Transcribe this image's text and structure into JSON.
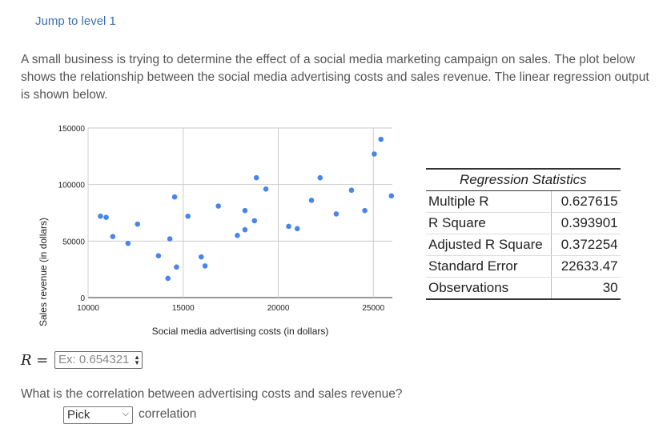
{
  "header": {
    "jump_link": "Jump to level 1"
  },
  "problem_text": "A small business is trying to determine the effect of a social media marketing campaign on sales. The plot below shows the relationship between the social media advertising costs and sales revenue. The linear regression output is shown below.",
  "chart_data": {
    "type": "scatter",
    "xlabel": "Social media advertising costs (in dollars)",
    "ylabel": "Sales revenue (in dollars)",
    "xlim": [
      10000,
      26000
    ],
    "ylim": [
      0,
      150000
    ],
    "x_ticks": [
      10000,
      15000,
      20000,
      25000
    ],
    "y_ticks": [
      0,
      50000,
      100000,
      150000
    ],
    "x_tick_labels": [
      "10000",
      "15000",
      "20000",
      "25000"
    ],
    "y_tick_labels": [
      "0",
      "50000",
      "100000",
      "150000"
    ],
    "grid": true,
    "point_color": "#4a86e8",
    "points": [
      [
        10650,
        72000
      ],
      [
        10950,
        71000
      ],
      [
        11300,
        54000
      ],
      [
        12100,
        48000
      ],
      [
        12600,
        65000
      ],
      [
        13700,
        37000
      ],
      [
        14200,
        17000
      ],
      [
        14300,
        52000
      ],
      [
        14550,
        89000
      ],
      [
        14650,
        27000
      ],
      [
        15250,
        72000
      ],
      [
        15950,
        36000
      ],
      [
        16150,
        28000
      ],
      [
        16850,
        81000
      ],
      [
        17850,
        55000
      ],
      [
        18250,
        77000
      ],
      [
        18250,
        60000
      ],
      [
        18750,
        68000
      ],
      [
        18850,
        106000
      ],
      [
        19350,
        96000
      ],
      [
        20550,
        63000
      ],
      [
        21000,
        61000
      ],
      [
        21750,
        86000
      ],
      [
        22200,
        106000
      ],
      [
        23050,
        74000
      ],
      [
        23850,
        95000
      ],
      [
        24550,
        77000
      ],
      [
        25050,
        127000
      ],
      [
        25400,
        140000
      ],
      [
        25950,
        90000
      ]
    ]
  },
  "regression": {
    "title": "Regression Statistics",
    "rows": [
      {
        "label": "Multiple R",
        "value": "0.627615"
      },
      {
        "label": "R Square",
        "value": "0.393901"
      },
      {
        "label": "Adjusted R Square",
        "value": "0.372254"
      },
      {
        "label": "Standard Error",
        "value": "22633.47"
      },
      {
        "label": "Observations",
        "value": "30"
      }
    ]
  },
  "r_input": {
    "label": "R =",
    "placeholder": "Ex: 0.654321",
    "spinner_icon": "spinner-icon"
  },
  "question": "What is the correlation between advertising costs and sales revenue?",
  "dropdown": {
    "selected": "Pick",
    "trailing_text": "correlation",
    "chevron_icon": "chevron-down-icon"
  }
}
